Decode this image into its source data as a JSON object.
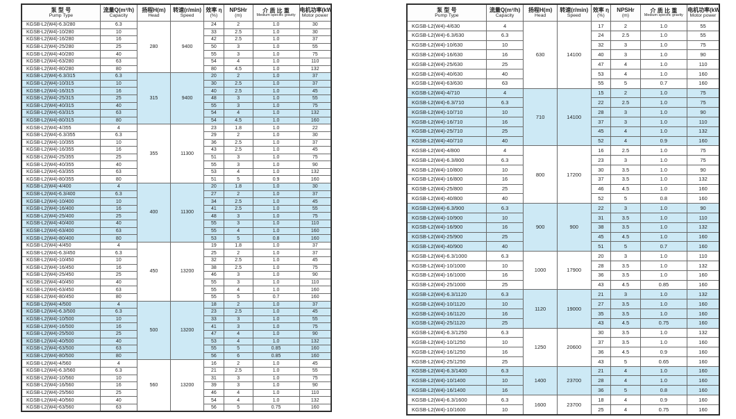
{
  "columns": [
    {
      "key": "pump-type",
      "zh": "泵 型 号",
      "en": "Pump Type"
    },
    {
      "key": "capacity",
      "zh": "流量Q(m³/h)",
      "en": "Capacity"
    },
    {
      "key": "head",
      "zh": "扬程H(m)",
      "en": "Head"
    },
    {
      "key": "speed",
      "zh": "转速(r/min)",
      "en": "Speed"
    },
    {
      "key": "efficiency",
      "zh": "效率 η",
      "en": "(%)"
    },
    {
      "key": "npshr",
      "zh": "NPSHr",
      "en": "(m)"
    },
    {
      "key": "gravity",
      "zh": "介 质 比 重",
      "en": "Medium specific gravity"
    },
    {
      "key": "motor-power",
      "zh": "电机功率(kW)",
      "en": "Motor power"
    }
  ],
  "colors": {
    "band_blue": "#cde9f5",
    "outer_border": "#2e2e2e",
    "inner_border": "#6a6a6a",
    "text": "#222222",
    "page_bg": "#ffffff"
  },
  "tables": [
    {
      "name": "left-spec-table",
      "groups": [
        {
          "head": "280",
          "speed": "9400",
          "highlight": false,
          "rows": [
            [
              "KGSB-L2(W4)-6.3/280",
              "6.3",
              "24",
              "2",
              "1.0",
              "30"
            ],
            [
              "KGSB-L2(W4)-10/280",
              "10",
              "33",
              "2.5",
              "1.0",
              "30"
            ],
            [
              "KGSB-L2(W4)-16/280",
              "16",
              "42",
              "2.5",
              "1.0",
              "37"
            ],
            [
              "KGSB-L2(W4)-25/280",
              "25",
              "50",
              "3",
              "1.0",
              "55"
            ],
            [
              "KGSB-L2(W4)-40/280",
              "40",
              "55",
              "3",
              "1.0",
              "75"
            ],
            [
              "KGSB-L2(W4)-63/280",
              "63",
              "54",
              "4",
              "1.0",
              "110"
            ],
            [
              "KGSB-L2(W4)-80/280",
              "80",
              "80",
              "4.5",
              "1.0",
              "132"
            ]
          ]
        },
        {
          "head": "315",
          "speed": "9400",
          "highlight": true,
          "rows": [
            [
              "KGSB-L2(W4)-6.3/315",
              "6.3",
              "20",
              "2",
              "1.0",
              "37"
            ],
            [
              "KGSB-L2(W4)-10/315",
              "10",
              "30",
              "2.5",
              "1.0",
              "37"
            ],
            [
              "KGSB-L2(W4)-16/315",
              "16",
              "40",
              "2.5",
              "1.0",
              "45"
            ],
            [
              "KGSB-L2(W4)-25/315",
              "25",
              "48",
              "3",
              "1.0",
              "55"
            ],
            [
              "KGSB-L2(W4)-40/315",
              "40",
              "55",
              "3",
              "1.0",
              "75"
            ],
            [
              "KGSB-L2(W4)-63/315",
              "63",
              "54",
              "4",
              "1.0",
              "132"
            ],
            [
              "KGSB-L2(W4)-80/315",
              "80",
              "54",
              "4.5",
              "1.0",
              "160"
            ]
          ]
        },
        {
          "head": "355",
          "speed": "11300",
          "highlight": false,
          "rows": [
            [
              "KGSB-L2(W4)-4/355",
              "4",
              "23",
              "1.8",
              "1.0",
              "22"
            ],
            [
              "KGSB-L2(W4)-6.3/355",
              "6.3",
              "29",
              "2",
              "1.0",
              "30"
            ],
            [
              "KGSB-L2(W4)-10/355",
              "10",
              "36",
              "2.5",
              "1.0",
              "37"
            ],
            [
              "KGSB-L2(W4)-16/355",
              "16",
              "43",
              "2.5",
              "1.0",
              "45"
            ],
            [
              "KGSB-L2(W4)-25/355",
              "25",
              "51",
              "3",
              "1.0",
              "75"
            ],
            [
              "KGSB-L2(W4)-40/355",
              "40",
              "55",
              "3",
              "1.0",
              "90"
            ],
            [
              "KGSB-L2(W4)-63/355",
              "63",
              "53",
              "4",
              "1.0",
              "132"
            ],
            [
              "KGSB-L2(W4)-80/355",
              "80",
              "51",
              "5",
              "0.9",
              "160"
            ]
          ]
        },
        {
          "head": "400",
          "speed": "11300",
          "highlight": true,
          "rows": [
            [
              "KGSB-L2(W4)-4/400",
              "4",
              "20",
              "1.8",
              "1.0",
              "30"
            ],
            [
              "KGSB-L2(W4)-6.3/400",
              "6.3",
              "27",
              "2",
              "1.0",
              "37"
            ],
            [
              "KGSB-L2(W4)-10/400",
              "10",
              "34",
              "2.5",
              "1.0",
              "45"
            ],
            [
              "KGSB-L2(W4)-16/400",
              "16",
              "41",
              "2.5",
              "1.0",
              "55"
            ],
            [
              "KGSB-L2(W4)-25/400",
              "25",
              "48",
              "3",
              "1.0",
              "75"
            ],
            [
              "KGSB-L2(W4)-40/400",
              "40",
              "55",
              "3",
              "1.0",
              "110"
            ],
            [
              "KGSB-L2(W4)-63/400",
              "63",
              "55",
              "4",
              "1.0",
              "160"
            ],
            [
              "KGSB-L2(W4)-80/400",
              "80",
              "53",
              "5",
              "0.8",
              "160"
            ]
          ]
        },
        {
          "head": "450",
          "speed": "13200",
          "highlight": false,
          "rows": [
            [
              "KGSB-L2(W4)-4/450",
              "4",
              "19",
              "1.8",
              "1.0",
              "37"
            ],
            [
              "KGSB-L2(W4)-6.3/450",
              "6.3",
              "25",
              "2",
              "1.0",
              "37"
            ],
            [
              "KGSB-L2(W4)-10/450",
              "10",
              "32",
              "2.5",
              "1.0",
              "45"
            ],
            [
              "KGSB-L2(W4)-16/450",
              "16",
              "38",
              "2.5",
              "1.0",
              "75"
            ],
            [
              "KGSB-L2(W4)-25/450",
              "25",
              "46",
              "3",
              "1.0",
              "90"
            ],
            [
              "KGSB-L2(W4)-40/450",
              "40",
              "55",
              "3",
              "1.0",
              "110"
            ],
            [
              "KGSB-L2(W4)-63/450",
              "63",
              "55",
              "4",
              "1.0",
              "160"
            ],
            [
              "KGSB-L2(W4)-80/450",
              "80",
              "55",
              "5",
              "0.7",
              "160"
            ]
          ]
        },
        {
          "head": "500",
          "speed": "13200",
          "highlight": true,
          "rows": [
            [
              "KGSB-L2(W4)-4/500",
              "4",
              "18",
              "2",
              "1.0",
              "37"
            ],
            [
              "KGSB-L2(W4)-6.3/500",
              "6.3",
              "23",
              "2.5",
              "1.0",
              "45"
            ],
            [
              "KGSB-L2(W4)-10/500",
              "10",
              "33",
              "3",
              "1.0",
              "55"
            ],
            [
              "KGSB-L2(W4)-16/500",
              "16",
              "41",
              "3",
              "1.0",
              "75"
            ],
            [
              "KGSB-L2(W4)-25/500",
              "25",
              "47",
              "4",
              "1.0",
              "90"
            ],
            [
              "KGSB-L2(W4)-40/500",
              "40",
              "53",
              "4",
              "1.0",
              "132"
            ],
            [
              "KGSB-L2(W4)-63/500",
              "63",
              "55",
              "5",
              "0.85",
              "160"
            ],
            [
              "KGSB-L2(W4)-80/500",
              "80",
              "56",
              "6",
              "0.85",
              "160"
            ]
          ]
        },
        {
          "head": "560",
          "speed": "13200",
          "highlight": false,
          "rows": [
            [
              "KGSB-L2(W4)-4/560",
              "4",
              "16",
              "2",
              "1.0",
              "45"
            ],
            [
              "KGSB-L2(W4)-6.3/560",
              "6.3",
              "21",
              "2.5",
              "1.0",
              "55"
            ],
            [
              "KGSB-L2(W4)-10/560",
              "10",
              "31",
              "3",
              "1.0",
              "75"
            ],
            [
              "KGSB-L2(W4)-16/560",
              "16",
              "39",
              "3",
              "1.0",
              "90"
            ],
            [
              "KGSB-L2(W4)-25/560",
              "25",
              "46",
              "4",
              "1.0",
              "110"
            ],
            [
              "KGSB-L2(W4)-40/560",
              "40",
              "54",
              "4",
              "1.0",
              "132"
            ],
            [
              "KGSB-L2(W4)-63/560",
              "63",
              "56",
              "5",
              "0.75",
              "160"
            ]
          ]
        }
      ]
    },
    {
      "name": "right-spec-table",
      "groups": [
        {
          "head": "630",
          "speed": "14100",
          "highlight": false,
          "rows": [
            [
              "KGSB-L2(W4)-4/630",
              "4",
              "17",
              "2",
              "1.0",
              "55"
            ],
            [
              "KGSB-L2(W4)-6.3/630",
              "6.3",
              "24",
              "2.5",
              "1.0",
              "55"
            ],
            [
              "KGSB-L2(W4)-10/630",
              "10",
              "32",
              "3",
              "1.0",
              "75"
            ],
            [
              "KGSB-L2(W4)-16/630",
              "16",
              "40",
              "3",
              "1.0",
              "90"
            ],
            [
              "KGSB-L2(W4)-25/630",
              "25",
              "47",
              "4",
              "1.0",
              "110"
            ],
            [
              "KGSB-L2(W4)-40/630",
              "40",
              "53",
              "4",
              "1.0",
              "160"
            ],
            [
              "KGSB-L2(W4)-63/630",
              "63",
              "55",
              "5",
              "0.7",
              "160"
            ]
          ]
        },
        {
          "head": "710",
          "speed": "14100",
          "highlight": true,
          "rows": [
            [
              "KGSB-L2(W4)-4/710",
              "4",
              "15",
              "2",
              "1.0",
              "75"
            ],
            [
              "KGSB-L2(W4)-6.3/710",
              "6.3",
              "22",
              "2.5",
              "1.0",
              "75"
            ],
            [
              "KGSB-L2(W4)-10/710",
              "10",
              "28",
              "3",
              "1.0",
              "90"
            ],
            [
              "KGSB-L2(W4)-16/710",
              "16",
              "37",
              "3",
              "1.0",
              "110"
            ],
            [
              "KGSB-L2(W4)-25/710",
              "25",
              "45",
              "4",
              "1.0",
              "132"
            ],
            [
              "KGSB-L2(W4)-40/710",
              "40",
              "52",
              "4",
              "0.9",
              "160"
            ]
          ]
        },
        {
          "head": "800",
          "speed": "17200",
          "highlight": false,
          "rows": [
            [
              "KGSB-L2(W4)-4/800",
              "4",
              "16",
              "2.5",
              "1.0",
              "75"
            ],
            [
              "KGSB-L2(W4)-6.3/800",
              "6.3",
              "23",
              "3",
              "1.0",
              "75"
            ],
            [
              "KGSB-L2(W4)-10/800",
              "10",
              "30",
              "3.5",
              "1.0",
              "90"
            ],
            [
              "KGSB-L2(W4)-16/800",
              "16",
              "37",
              "3.5",
              "1.0",
              "132"
            ],
            [
              "KGSB-L2(W4)-25/800",
              "25",
              "46",
              "4.5",
              "1.0",
              "160"
            ],
            [
              "KGSB-L2(W4)-40/800",
              "40",
              "52",
              "5",
              "0.8",
              "160"
            ]
          ]
        },
        {
          "head": "900",
          "speed": "900",
          "highlight": true,
          "rows": [
            [
              "KGSB-L2(W4)-6.3/900",
              "6.3",
              "22",
              "3",
              "1.0",
              "90"
            ],
            [
              "KGSB-L2(W4)-10/900",
              "10",
              "31",
              "3.5",
              "1.0",
              "110"
            ],
            [
              "KGSB-L2(W4)-16/900",
              "16",
              "38",
              "3.5",
              "1.0",
              "132"
            ],
            [
              "KGSB-L2(W4)-25/900",
              "25",
              "45",
              "4.5",
              "1.0",
              "160"
            ],
            [
              "KGSB-L2(W4)-40/900",
              "40",
              "51",
              "5",
              "0.7",
              "160"
            ]
          ]
        },
        {
          "head": "1000",
          "speed": "17900",
          "highlight": false,
          "rows": [
            [
              "KGSB-L2(W4)-6.3/1000",
              "6.3",
              "20",
              "3",
              "1.0",
              "110"
            ],
            [
              "KGSB-L2(W4)-10/1000",
              "10",
              "28",
              "3.5",
              "1.0",
              "132"
            ],
            [
              "KGSB-L2(W4)-16/1000",
              "16",
              "36",
              "3.5",
              "1.0",
              "160"
            ],
            [
              "KGSB-L2(W4)-25/1000",
              "25",
              "43",
              "4.5",
              "0.85",
              "160"
            ]
          ]
        },
        {
          "head": "1120",
          "speed": "19000",
          "highlight": true,
          "rows": [
            [
              "KGSB-L2(W4)-6.3/1120",
              "6.3",
              "21",
              "3",
              "1.0",
              "132"
            ],
            [
              "KGSB-L2(W4)-10/1120",
              "10",
              "27",
              "3.5",
              "1.0",
              "160"
            ],
            [
              "KGSB-L2(W4)-16/1120",
              "16",
              "35",
              "3.5",
              "1.0",
              "160"
            ],
            [
              "KGSB-L2(W4)-25/1120",
              "25",
              "43",
              "4.5",
              "0.75",
              "160"
            ]
          ]
        },
        {
          "head": "1250",
          "speed": "20600",
          "highlight": false,
          "rows": [
            [
              "KGSB-L2(W4)-6.3/1250",
              "6.3",
              "30",
              "3.5",
              "1.0",
              "132"
            ],
            [
              "KGSB-L2(W4)-10/1250",
              "10",
              "37",
              "3.5",
              "1.0",
              "160"
            ],
            [
              "KGSB-L2(W4)-16/1250",
              "16",
              "36",
              "4.5",
              "0.9",
              "160"
            ],
            [
              "KGSB-L2(W4)-25/1250",
              "25",
              "43",
              "5",
              "0.65",
              "160"
            ]
          ]
        },
        {
          "head": "1400",
          "speed": "23700",
          "highlight": true,
          "rows": [
            [
              "KGSB-L2(W4)-6.3/1400",
              "6.3",
              "21",
              "4",
              "1.0",
              "160"
            ],
            [
              "KGSB-L2(W4)-10/1400",
              "10",
              "28",
              "4",
              "1.0",
              "160"
            ],
            [
              "KGSB-L2(W4)-16/1400",
              "16",
              "36",
              "5",
              "0.8",
              "160"
            ]
          ]
        },
        {
          "head": "1600",
          "speed": "23700",
          "highlight": false,
          "rows": [
            [
              "KGSB-L2(W4)-6.3/1600",
              "6.3",
              "18",
              "4",
              "0.9",
              "160"
            ],
            [
              "KGSB-L2(W4)-10/1600",
              "10",
              "25",
              "4",
              "0.75",
              "160"
            ]
          ]
        }
      ]
    }
  ]
}
